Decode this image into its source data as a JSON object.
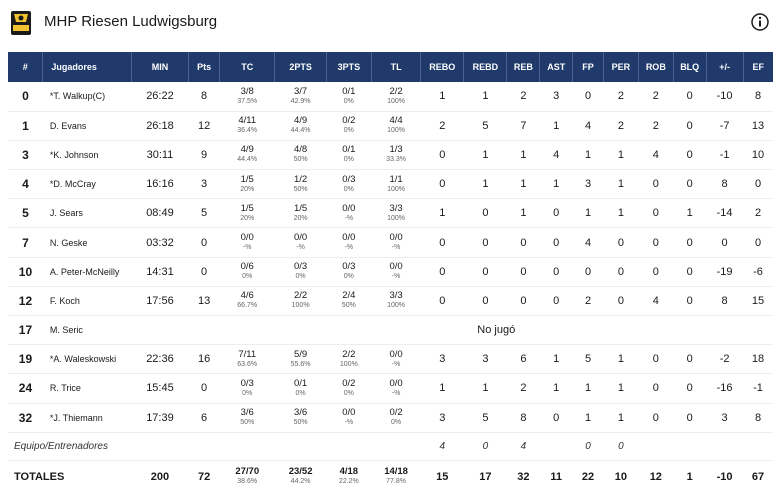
{
  "team": {
    "name": "MHP Riesen Ludwigsburg",
    "logo_icon": "team-logo-riesen",
    "logo_text": "RIESEN"
  },
  "columns": [
    "#",
    "Jugadores",
    "MIN",
    "Pts",
    "TC",
    "2PTS",
    "3PTS",
    "TL",
    "REBO",
    "REBD",
    "REB",
    "AST",
    "FP",
    "PER",
    "ROB",
    "BLQ",
    "+/-",
    "EF"
  ],
  "players": [
    {
      "num": "0",
      "name": "*T. Walkup(C)",
      "min": "26:22",
      "pts": "8",
      "tc": "3/8",
      "tc_pct": "37.5%",
      "p2": "3/7",
      "p2_pct": "42.9%",
      "p3": "0/1",
      "p3_pct": "0%",
      "tl": "2/2",
      "tl_pct": "100%",
      "rebo": "1",
      "rebd": "1",
      "reb": "2",
      "ast": "3",
      "fp": "0",
      "per": "2",
      "rob": "2",
      "blq": "0",
      "pm": "-10",
      "ef": "8"
    },
    {
      "num": "1",
      "name": "D. Evans",
      "min": "26:18",
      "pts": "12",
      "tc": "4/11",
      "tc_pct": "36.4%",
      "p2": "4/9",
      "p2_pct": "44.4%",
      "p3": "0/2",
      "p3_pct": "0%",
      "tl": "4/4",
      "tl_pct": "100%",
      "rebo": "2",
      "rebd": "5",
      "reb": "7",
      "ast": "1",
      "fp": "4",
      "per": "2",
      "rob": "2",
      "blq": "0",
      "pm": "-7",
      "ef": "13"
    },
    {
      "num": "3",
      "name": "*K. Johnson",
      "min": "30:11",
      "pts": "9",
      "tc": "4/9",
      "tc_pct": "44.4%",
      "p2": "4/8",
      "p2_pct": "50%",
      "p3": "0/1",
      "p3_pct": "0%",
      "tl": "1/3",
      "tl_pct": "33.3%",
      "rebo": "0",
      "rebd": "1",
      "reb": "1",
      "ast": "4",
      "fp": "1",
      "per": "1",
      "rob": "4",
      "blq": "0",
      "pm": "-1",
      "ef": "10"
    },
    {
      "num": "4",
      "name": "*D. McCray",
      "min": "16:16",
      "pts": "3",
      "tc": "1/5",
      "tc_pct": "20%",
      "p2": "1/2",
      "p2_pct": "50%",
      "p3": "0/3",
      "p3_pct": "0%",
      "tl": "1/1",
      "tl_pct": "100%",
      "rebo": "0",
      "rebd": "1",
      "reb": "1",
      "ast": "1",
      "fp": "3",
      "per": "1",
      "rob": "0",
      "blq": "0",
      "pm": "8",
      "ef": "0"
    },
    {
      "num": "5",
      "name": "J. Sears",
      "min": "08:49",
      "pts": "5",
      "tc": "1/5",
      "tc_pct": "20%",
      "p2": "1/5",
      "p2_pct": "20%",
      "p3": "0/0",
      "p3_pct": "-%",
      "tl": "3/3",
      "tl_pct": "100%",
      "rebo": "1",
      "rebd": "0",
      "reb": "1",
      "ast": "0",
      "fp": "1",
      "per": "1",
      "rob": "0",
      "blq": "1",
      "pm": "-14",
      "ef": "2"
    },
    {
      "num": "7",
      "name": "N. Geske",
      "min": "03:32",
      "pts": "0",
      "tc": "0/0",
      "tc_pct": "-%",
      "p2": "0/0",
      "p2_pct": "-%",
      "p3": "0/0",
      "p3_pct": "-%",
      "tl": "0/0",
      "tl_pct": "-%",
      "rebo": "0",
      "rebd": "0",
      "reb": "0",
      "ast": "0",
      "fp": "4",
      "per": "0",
      "rob": "0",
      "blq": "0",
      "pm": "0",
      "ef": "0"
    },
    {
      "num": "10",
      "name": "A. Peter-McNeilly",
      "min": "14:31",
      "pts": "0",
      "tc": "0/6",
      "tc_pct": "0%",
      "p2": "0/3",
      "p2_pct": "0%",
      "p3": "0/3",
      "p3_pct": "0%",
      "tl": "0/0",
      "tl_pct": "-%",
      "rebo": "0",
      "rebd": "0",
      "reb": "0",
      "ast": "0",
      "fp": "0",
      "per": "0",
      "rob": "0",
      "blq": "0",
      "pm": "-19",
      "ef": "-6"
    },
    {
      "num": "12",
      "name": "F. Koch",
      "min": "17:56",
      "pts": "13",
      "tc": "4/6",
      "tc_pct": "66.7%",
      "p2": "2/2",
      "p2_pct": "100%",
      "p3": "2/4",
      "p3_pct": "50%",
      "tl": "3/3",
      "tl_pct": "100%",
      "rebo": "0",
      "rebd": "0",
      "reb": "0",
      "ast": "0",
      "fp": "2",
      "per": "0",
      "rob": "4",
      "blq": "0",
      "pm": "8",
      "ef": "15"
    },
    {
      "num": "17",
      "name": "M. Seric",
      "dnp": "No jugó"
    },
    {
      "num": "19",
      "name": "*A. Waleskowski",
      "min": "22:36",
      "pts": "16",
      "tc": "7/11",
      "tc_pct": "63.6%",
      "p2": "5/9",
      "p2_pct": "55.6%",
      "p3": "2/2",
      "p3_pct": "100%",
      "tl": "0/0",
      "tl_pct": "-%",
      "rebo": "3",
      "rebd": "3",
      "reb": "6",
      "ast": "1",
      "fp": "5",
      "per": "1",
      "rob": "0",
      "blq": "0",
      "pm": "-2",
      "ef": "18"
    },
    {
      "num": "24",
      "name": "R. Trice",
      "min": "15:45",
      "pts": "0",
      "tc": "0/3",
      "tc_pct": "0%",
      "p2": "0/1",
      "p2_pct": "0%",
      "p3": "0/2",
      "p3_pct": "0%",
      "tl": "0/0",
      "tl_pct": "-%",
      "rebo": "1",
      "rebd": "1",
      "reb": "2",
      "ast": "1",
      "fp": "1",
      "per": "1",
      "rob": "0",
      "blq": "0",
      "pm": "-16",
      "ef": "-1"
    },
    {
      "num": "32",
      "name": "*J. Thiemann",
      "min": "17:39",
      "pts": "6",
      "tc": "3/6",
      "tc_pct": "50%",
      "p2": "3/6",
      "p2_pct": "50%",
      "p3": "0/0",
      "p3_pct": "-%",
      "tl": "0/2",
      "tl_pct": "0%",
      "rebo": "3",
      "rebd": "5",
      "reb": "8",
      "ast": "0",
      "fp": "1",
      "per": "1",
      "rob": "0",
      "blq": "0",
      "pm": "3",
      "ef": "8"
    }
  ],
  "bench": {
    "label": "Equipo/Entrenadores",
    "rebo": "4",
    "rebd": "0",
    "reb": "4",
    "fp": "0",
    "per": "0"
  },
  "totals": {
    "label": "TOTALES",
    "min": "200",
    "pts": "72",
    "tc": "27/70",
    "tc_pct": "38.6%",
    "p2": "23/52",
    "p2_pct": "44.2%",
    "p3": "4/18",
    "p3_pct": "22.2%",
    "tl": "14/18",
    "tl_pct": "77.8%",
    "rebo": "15",
    "rebd": "17",
    "reb": "32",
    "ast": "11",
    "fp": "22",
    "per": "10",
    "rob": "12",
    "blq": "1",
    "pm": "-10",
    "ef": "67"
  },
  "colors": {
    "header_bg": "#1f3a6b",
    "header_text": "#ffffff",
    "row_divider": "#ededed"
  }
}
